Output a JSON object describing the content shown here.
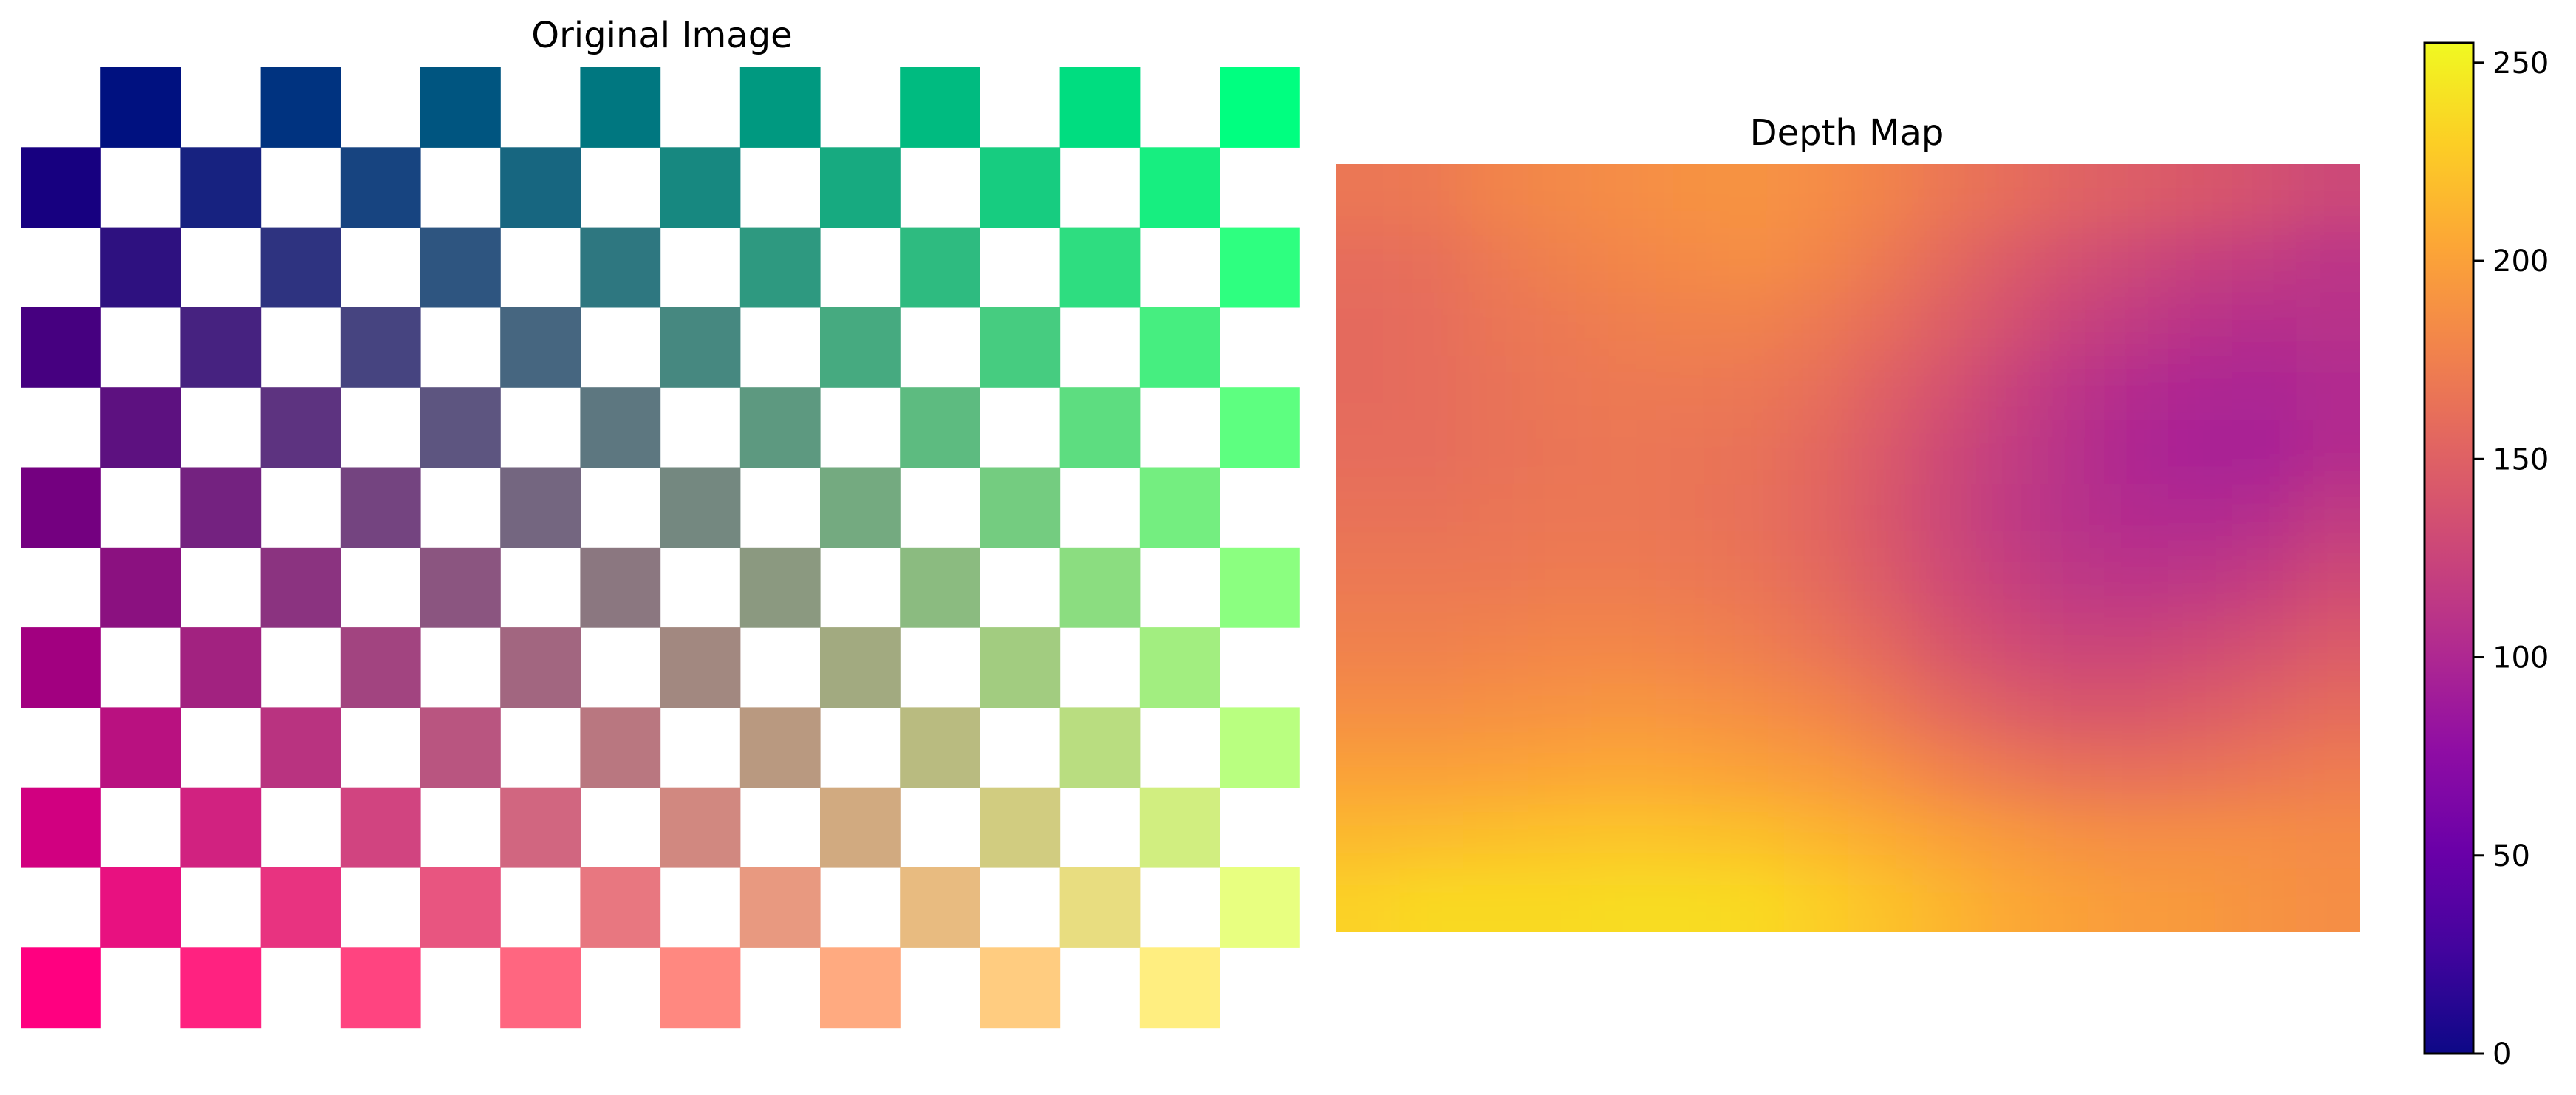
{
  "figure": {
    "panels": [
      {
        "title": "Original Image"
      },
      {
        "title": "Depth Map"
      }
    ]
  },
  "chart_data": [
    {
      "type": "heatmap",
      "title": "Original Image",
      "axes": "off",
      "grid": false,
      "rows": 12,
      "cols": 16,
      "pattern": "checkerboard",
      "colored_cells": "cells where (row + col) is odd",
      "other_cells": "white",
      "cell_color": "rgb(red = 255*row/11, green = 255*col/15, blue = 128)",
      "corner_colors": {
        "top-left": "#000080",
        "top-right": "#00ff80",
        "bottom-left": "#ff0080",
        "bottom-right": "#ffff80"
      }
    },
    {
      "type": "heatmap",
      "title": "Depth Map",
      "axes": "off",
      "colormap": "plasma",
      "value_range": [
        0,
        255
      ],
      "grid": false,
      "rows": 12,
      "cols": 16,
      "values": [
        [
          168,
          170,
          178,
          182,
          185,
          188,
          190,
          185,
          178,
          168,
          160,
          152,
          147,
          142,
          136,
          128
        ],
        [
          160,
          162,
          170,
          176,
          180,
          183,
          186,
          180,
          170,
          158,
          146,
          136,
          128,
          122,
          118,
          112
        ],
        [
          158,
          160,
          166,
          170,
          174,
          176,
          176,
          170,
          160,
          148,
          136,
          124,
          116,
          110,
          106,
          108
        ],
        [
          158,
          160,
          164,
          168,
          170,
          170,
          168,
          162,
          150,
          138,
          124,
          112,
          104,
          100,
          98,
          102
        ],
        [
          160,
          160,
          164,
          166,
          168,
          166,
          164,
          156,
          144,
          130,
          118,
          108,
          100,
          96,
          96,
          104
        ],
        [
          164,
          164,
          166,
          168,
          168,
          166,
          162,
          154,
          142,
          128,
          116,
          108,
          104,
          102,
          106,
          116
        ],
        [
          170,
          170,
          170,
          172,
          172,
          170,
          166,
          158,
          146,
          132,
          122,
          114,
          112,
          114,
          120,
          130
        ],
        [
          176,
          176,
          178,
          180,
          180,
          178,
          174,
          166,
          156,
          142,
          132,
          126,
          126,
          130,
          136,
          144
        ],
        [
          186,
          186,
          188,
          190,
          192,
          190,
          186,
          180,
          170,
          158,
          148,
          142,
          142,
          146,
          152,
          158
        ],
        [
          200,
          200,
          202,
          204,
          206,
          204,
          200,
          196,
          188,
          178,
          170,
          164,
          162,
          164,
          168,
          172
        ],
        [
          216,
          218,
          220,
          222,
          224,
          222,
          220,
          214,
          208,
          200,
          194,
          188,
          186,
          186,
          186,
          184
        ],
        [
          232,
          236,
          236,
          236,
          238,
          238,
          236,
          230,
          222,
          214,
          206,
          200,
          196,
          194,
          190,
          186
        ]
      ],
      "colorbar": {
        "range": [
          0,
          255
        ],
        "ticks": [
          0,
          50,
          100,
          150,
          200,
          250
        ],
        "tick_labels": [
          "0",
          "50",
          "100",
          "150",
          "200",
          "250"
        ]
      }
    }
  ]
}
